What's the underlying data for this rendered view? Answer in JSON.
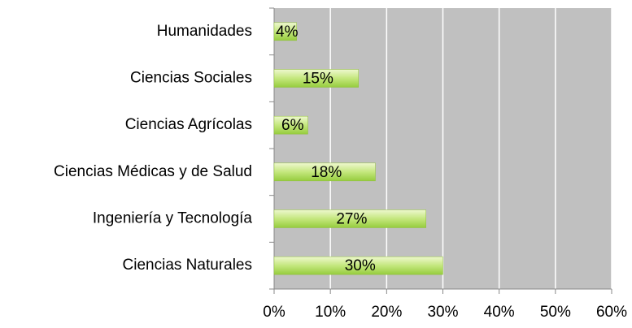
{
  "chart_data": {
    "type": "bar",
    "orientation": "horizontal",
    "categories": [
      "Humanidades",
      "Ciencias Sociales",
      "Ciencias Agrícolas",
      "Ciencias Médicas y de Salud",
      "Ingeniería y Tecnología",
      "Ciencias Naturales"
    ],
    "values": [
      4,
      15,
      6,
      18,
      27,
      30
    ],
    "value_labels": [
      "4%",
      "15%",
      "6%",
      "18%",
      "27%",
      "30%"
    ],
    "color": "#b5e061",
    "xlim": [
      0,
      60
    ],
    "xticks": [
      {
        "value": 0,
        "label": "0%"
      },
      {
        "value": 10,
        "label": "10%"
      },
      {
        "value": 20,
        "label": "20%"
      },
      {
        "value": 30,
        "label": "30%"
      },
      {
        "value": 40,
        "label": "40%"
      },
      {
        "value": 50,
        "label": "50%"
      },
      {
        "value": 60,
        "label": "60%"
      }
    ],
    "grid": true
  }
}
